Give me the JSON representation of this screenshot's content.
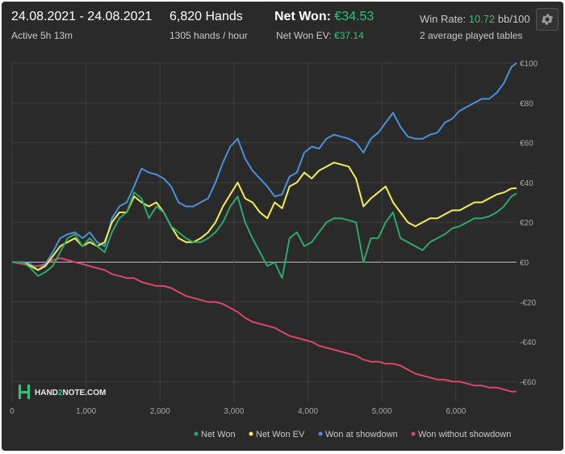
{
  "header": {
    "date_range": "24.08.2021 - 24.08.2021",
    "active_time": "Active 5h 13m",
    "hands": "6,820 Hands",
    "hands_per_hour": "1305 hands / hour",
    "net_won_label": "Net Won:",
    "net_won_value": "€34.53",
    "net_won_ev_label": "Net Won  EV:",
    "net_won_ev_value": "€37.14",
    "win_rate_label": "Win Rate:",
    "win_rate_value": "10.72",
    "win_rate_unit": "bb/100",
    "tables": "2 average played tables"
  },
  "logo": {
    "prefix": "HAND",
    "mid": "2",
    "suffix": "NOTE.COM"
  },
  "colors": {
    "background": "#2a2a2a",
    "accent_green": "#2ec27e",
    "net_won": "#2ba86b",
    "net_won_ev": "#f5ef4a",
    "won_at_showdown": "#4a90d9",
    "won_without_showdown": "#d9456e"
  },
  "chart_data": {
    "type": "line",
    "xlim": [
      0,
      6820
    ],
    "ylim": [
      -70,
      100
    ],
    "x_ticks": [
      0,
      1000,
      2000,
      3000,
      4000,
      5000,
      6000
    ],
    "x_tick_labels": [
      "0",
      "1,000",
      "2,000",
      "3,000",
      "4,000",
      "5,000",
      "6,000"
    ],
    "y_ticks": [
      100,
      80,
      60,
      40,
      20,
      0,
      -20,
      -40,
      -60
    ],
    "y_tick_labels": [
      "€100",
      "€80",
      "€60",
      "€40",
      "€20",
      "€0",
      "-€20",
      "-€40",
      "-€60"
    ],
    "grid": true,
    "legend_position": "bottom-right",
    "series": [
      {
        "name": "Net Won",
        "color": "#2ba86b",
        "x": [
          0,
          150,
          250,
          350,
          450,
          550,
          650,
          750,
          850,
          950,
          1050,
          1150,
          1250,
          1350,
          1450,
          1550,
          1650,
          1750,
          1850,
          1950,
          2050,
          2150,
          2250,
          2350,
          2450,
          2550,
          2650,
          2750,
          2850,
          2950,
          3050,
          3150,
          3250,
          3350,
          3450,
          3550,
          3650,
          3750,
          3850,
          3950,
          4050,
          4150,
          4250,
          4350,
          4450,
          4550,
          4650,
          4750,
          4850,
          4950,
          5050,
          5150,
          5250,
          5350,
          5450,
          5550,
          5650,
          5750,
          5850,
          5950,
          6050,
          6150,
          6250,
          6350,
          6450,
          6550,
          6650,
          6750,
          6820
        ],
        "y": [
          0,
          0,
          -3,
          -7,
          -5,
          -2,
          5,
          12,
          14,
          8,
          12,
          8,
          5,
          15,
          22,
          25,
          35,
          32,
          22,
          28,
          25,
          18,
          15,
          12,
          10,
          10,
          12,
          15,
          20,
          28,
          33,
          20,
          12,
          5,
          -2,
          0,
          -8,
          12,
          15,
          8,
          10,
          15,
          20,
          22,
          22,
          21,
          20,
          0,
          12,
          12,
          20,
          25,
          12,
          10,
          8,
          6,
          10,
          12,
          14,
          17,
          18,
          20,
          22,
          22,
          23,
          25,
          28,
          33,
          34.53
        ]
      },
      {
        "name": "Net Won  EV",
        "color": "#f5ef4a",
        "x": [
          0,
          150,
          250,
          350,
          450,
          550,
          650,
          750,
          850,
          950,
          1050,
          1150,
          1250,
          1350,
          1450,
          1550,
          1650,
          1750,
          1850,
          1950,
          2050,
          2150,
          2250,
          2350,
          2450,
          2550,
          2650,
          2750,
          2850,
          2950,
          3050,
          3150,
          3250,
          3350,
          3450,
          3550,
          3650,
          3750,
          3850,
          3950,
          4050,
          4150,
          4250,
          4350,
          4450,
          4550,
          4650,
          4750,
          4850,
          4950,
          5050,
          5150,
          5250,
          5350,
          5450,
          5550,
          5650,
          5750,
          5850,
          5950,
          6050,
          6150,
          6250,
          6350,
          6450,
          6550,
          6650,
          6750,
          6820
        ],
        "y": [
          0,
          0,
          -2,
          -4,
          -2,
          3,
          8,
          10,
          12,
          8,
          10,
          8,
          10,
          20,
          25,
          25,
          33,
          30,
          28,
          30,
          25,
          18,
          12,
          10,
          10,
          12,
          15,
          20,
          28,
          34,
          40,
          32,
          30,
          25,
          22,
          30,
          27,
          38,
          40,
          45,
          42,
          46,
          48,
          50,
          49,
          48,
          42,
          28,
          32,
          35,
          38,
          30,
          25,
          20,
          18,
          20,
          22,
          22,
          24,
          26,
          26,
          28,
          30,
          30,
          32,
          34,
          35,
          37,
          37.14
        ]
      },
      {
        "name": "Won at showdown",
        "color": "#4a90d9",
        "x": [
          0,
          150,
          250,
          350,
          450,
          550,
          650,
          750,
          850,
          950,
          1050,
          1150,
          1250,
          1350,
          1450,
          1550,
          1650,
          1750,
          1850,
          1950,
          2050,
          2150,
          2250,
          2350,
          2450,
          2550,
          2650,
          2750,
          2850,
          2950,
          3050,
          3150,
          3250,
          3350,
          3450,
          3550,
          3650,
          3750,
          3850,
          3950,
          4050,
          4150,
          4250,
          4350,
          4450,
          4550,
          4650,
          4750,
          4850,
          4950,
          5050,
          5150,
          5250,
          5350,
          5450,
          5550,
          5650,
          5750,
          5850,
          5950,
          6050,
          6150,
          6250,
          6350,
          6450,
          6550,
          6650,
          6750,
          6820
        ],
        "y": [
          0,
          0,
          -1,
          -4,
          -1,
          5,
          12,
          14,
          15,
          12,
          15,
          10,
          8,
          22,
          28,
          30,
          38,
          47,
          45,
          44,
          42,
          38,
          30,
          28,
          28,
          30,
          32,
          40,
          50,
          58,
          62,
          52,
          46,
          42,
          38,
          33,
          34,
          43,
          45,
          55,
          58,
          57,
          62,
          64,
          63,
          62,
          60,
          55,
          62,
          65,
          70,
          75,
          68,
          63,
          62,
          62,
          64,
          65,
          70,
          72,
          76,
          78,
          80,
          82,
          82,
          85,
          90,
          98,
          100
        ]
      },
      {
        "name": "Won without showdown",
        "color": "#d9456e",
        "x": [
          0,
          150,
          250,
          350,
          450,
          550,
          650,
          750,
          850,
          950,
          1050,
          1150,
          1250,
          1350,
          1450,
          1550,
          1650,
          1750,
          1850,
          1950,
          2050,
          2150,
          2250,
          2350,
          2450,
          2550,
          2650,
          2750,
          2850,
          2950,
          3050,
          3150,
          3250,
          3350,
          3450,
          3550,
          3650,
          3750,
          3850,
          3950,
          4050,
          4150,
          4250,
          4350,
          4450,
          4550,
          4650,
          4750,
          4850,
          4950,
          5050,
          5150,
          5250,
          5350,
          5450,
          5550,
          5650,
          5750,
          5850,
          5950,
          6050,
          6150,
          6250,
          6350,
          6450,
          6550,
          6650,
          6750,
          6820
        ],
        "y": [
          0,
          -1,
          -2,
          -2,
          -1,
          1,
          2,
          1,
          0,
          -1,
          -2,
          -3,
          -4,
          -6,
          -7,
          -8,
          -8,
          -10,
          -11,
          -12,
          -12,
          -13,
          -15,
          -17,
          -18,
          -19,
          -20,
          -20,
          -21,
          -23,
          -25,
          -28,
          -30,
          -31,
          -32,
          -33,
          -35,
          -37,
          -38,
          -39,
          -40,
          -42,
          -43,
          -44,
          -45,
          -46,
          -47,
          -49,
          -50,
          -50,
          -51,
          -51,
          -52,
          -54,
          -56,
          -57,
          -58,
          -59,
          -59,
          -60,
          -60,
          -61,
          -62,
          -62,
          -63,
          -63,
          -64,
          -65,
          -65
        ]
      }
    ]
  }
}
